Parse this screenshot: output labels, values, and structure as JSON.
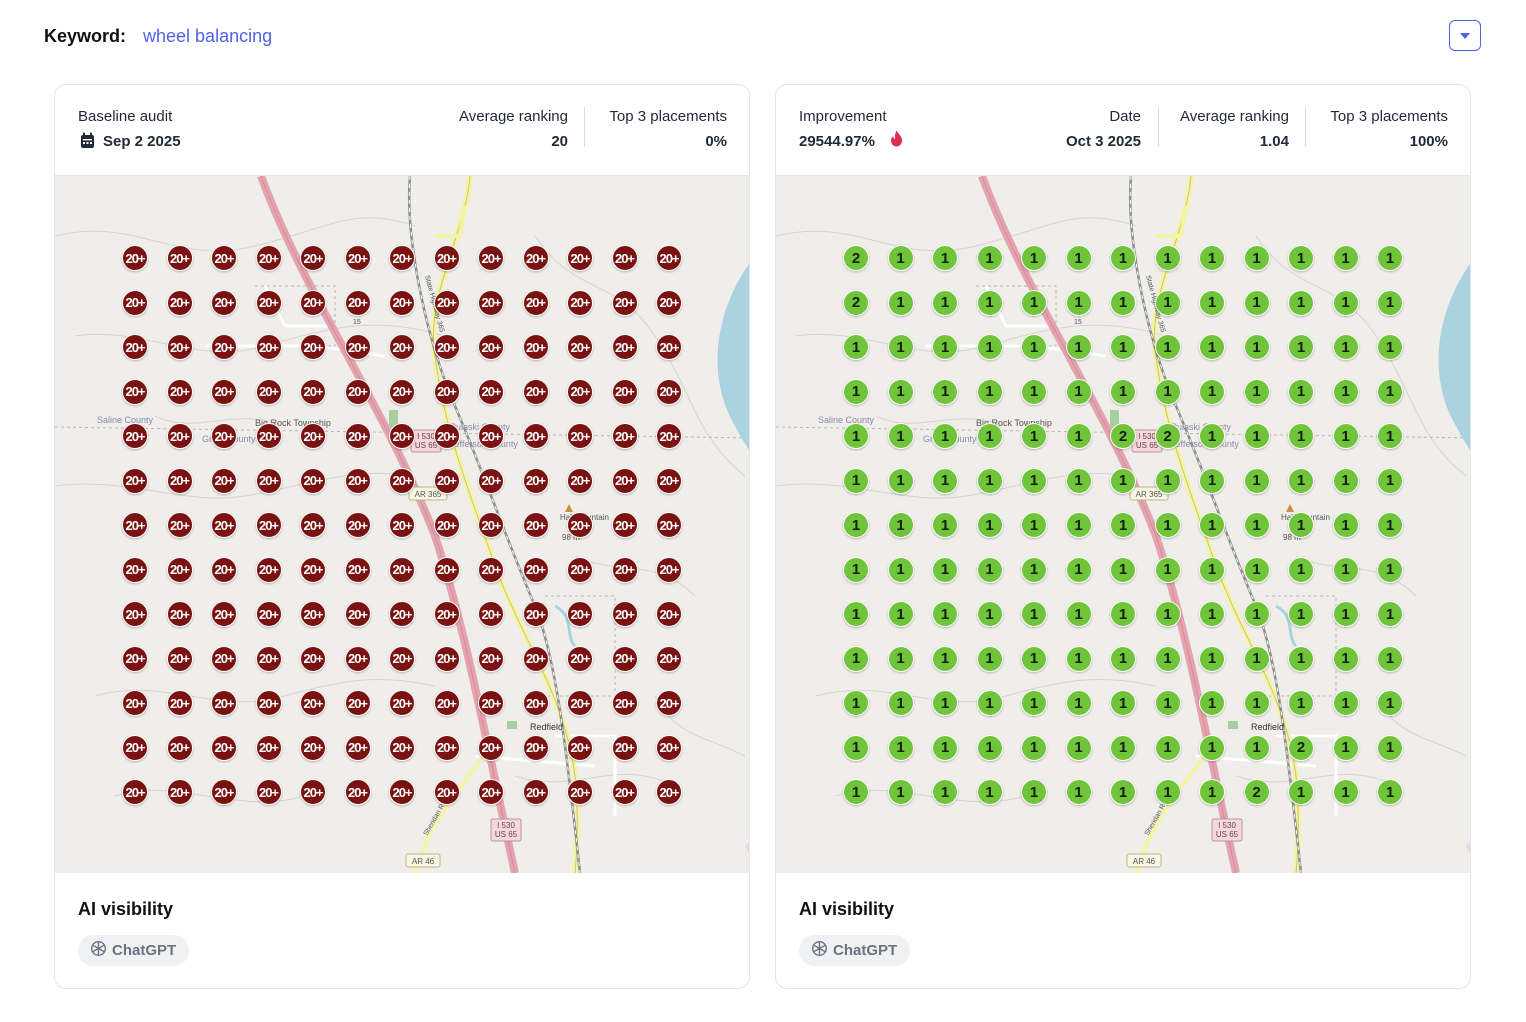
{
  "keyword": {
    "label": "Keyword:",
    "value": "wheel balancing"
  },
  "colors": {
    "accent": "#4f63e6",
    "pin_baseline": "#7a1212",
    "pin_current": "#6fc43a"
  },
  "left_card": {
    "baseline_label": "Baseline audit",
    "date": "Sep 2 2025",
    "avg_label": "Average ranking",
    "avg_value": "20",
    "top3_label": "Top 3 placements",
    "top3_value": "0%",
    "footer_title": "AI visibility",
    "chip_label": "ChatGPT",
    "grid": [
      [
        "20+",
        "20+",
        "20+",
        "20+",
        "20+",
        "20+",
        "20+",
        "20+",
        "20+",
        "20+",
        "20+",
        "20+",
        "20+"
      ],
      [
        "20+",
        "20+",
        "20+",
        "20+",
        "20+",
        "20+",
        "20+",
        "20+",
        "20+",
        "20+",
        "20+",
        "20+",
        "20+"
      ],
      [
        "20+",
        "20+",
        "20+",
        "20+",
        "20+",
        "20+",
        "20+",
        "20+",
        "20+",
        "20+",
        "20+",
        "20+",
        "20+"
      ],
      [
        "20+",
        "20+",
        "20+",
        "20+",
        "20+",
        "20+",
        "20+",
        "20+",
        "20+",
        "20+",
        "20+",
        "20+",
        "20+"
      ],
      [
        "20+",
        "20+",
        "20+",
        "20+",
        "20+",
        "20+",
        "20+",
        "20+",
        "20+",
        "20+",
        "20+",
        "20+",
        "20+"
      ],
      [
        "20+",
        "20+",
        "20+",
        "20+",
        "20+",
        "20+",
        "20+",
        "20+",
        "20+",
        "20+",
        "20+",
        "20+",
        "20+"
      ],
      [
        "20+",
        "20+",
        "20+",
        "20+",
        "20+",
        "20+",
        "20+",
        "20+",
        "20+",
        "20+",
        "20+",
        "20+",
        "20+"
      ],
      [
        "20+",
        "20+",
        "20+",
        "20+",
        "20+",
        "20+",
        "20+",
        "20+",
        "20+",
        "20+",
        "20+",
        "20+",
        "20+"
      ],
      [
        "20+",
        "20+",
        "20+",
        "20+",
        "20+",
        "20+",
        "20+",
        "20+",
        "20+",
        "20+",
        "20+",
        "20+",
        "20+"
      ],
      [
        "20+",
        "20+",
        "20+",
        "20+",
        "20+",
        "20+",
        "20+",
        "20+",
        "20+",
        "20+",
        "20+",
        "20+",
        "20+"
      ],
      [
        "20+",
        "20+",
        "20+",
        "20+",
        "20+",
        "20+",
        "20+",
        "20+",
        "20+",
        "20+",
        "20+",
        "20+",
        "20+"
      ],
      [
        "20+",
        "20+",
        "20+",
        "20+",
        "20+",
        "20+",
        "20+",
        "20+",
        "20+",
        "20+",
        "20+",
        "20+",
        "20+"
      ],
      [
        "20+",
        "20+",
        "20+",
        "20+",
        "20+",
        "20+",
        "20+",
        "20+",
        "20+",
        "20+",
        "20+",
        "20+",
        "20+"
      ]
    ]
  },
  "right_card": {
    "improvement_label": "Improvement",
    "improvement_value": "29544.97%",
    "date_label": "Date",
    "date_value": "Oct 3 2025",
    "avg_label": "Average ranking",
    "avg_value": "1.04",
    "top3_label": "Top 3 placements",
    "top3_value": "100%",
    "footer_title": "AI visibility",
    "chip_label": "ChatGPT",
    "grid": [
      [
        "2",
        "1",
        "1",
        "1",
        "1",
        "1",
        "1",
        "1",
        "1",
        "1",
        "1",
        "1",
        "1"
      ],
      [
        "2",
        "1",
        "1",
        "1",
        "1",
        "1",
        "1",
        "1",
        "1",
        "1",
        "1",
        "1",
        "1"
      ],
      [
        "1",
        "1",
        "1",
        "1",
        "1",
        "1",
        "1",
        "1",
        "1",
        "1",
        "1",
        "1",
        "1"
      ],
      [
        "1",
        "1",
        "1",
        "1",
        "1",
        "1",
        "1",
        "1",
        "1",
        "1",
        "1",
        "1",
        "1"
      ],
      [
        "1",
        "1",
        "1",
        "1",
        "1",
        "1",
        "2",
        "2",
        "1",
        "1",
        "1",
        "1",
        "1"
      ],
      [
        "1",
        "1",
        "1",
        "1",
        "1",
        "1",
        "1",
        "1",
        "1",
        "1",
        "1",
        "1",
        "1"
      ],
      [
        "1",
        "1",
        "1",
        "1",
        "1",
        "1",
        "1",
        "1",
        "1",
        "1",
        "1",
        "1",
        "1"
      ],
      [
        "1",
        "1",
        "1",
        "1",
        "1",
        "1",
        "1",
        "1",
        "1",
        "1",
        "1",
        "1",
        "1"
      ],
      [
        "1",
        "1",
        "1",
        "1",
        "1",
        "1",
        "1",
        "1",
        "1",
        "1",
        "1",
        "1",
        "1"
      ],
      [
        "1",
        "1",
        "1",
        "1",
        "1",
        "1",
        "1",
        "1",
        "1",
        "1",
        "1",
        "1",
        "1"
      ],
      [
        "1",
        "1",
        "1",
        "1",
        "1",
        "1",
        "1",
        "1",
        "1",
        "1",
        "1",
        "1",
        "1"
      ],
      [
        "1",
        "1",
        "1",
        "1",
        "1",
        "1",
        "1",
        "1",
        "1",
        "1",
        "2",
        "1",
        "1"
      ],
      [
        "1",
        "1",
        "1",
        "1",
        "1",
        "1",
        "1",
        "1",
        "1",
        "2",
        "1",
        "1",
        "1"
      ]
    ]
  },
  "map_labels": {
    "saline": "Saline County",
    "township": "Big Rock Township",
    "grant": "Grant County",
    "pulaski": "Pulaski County",
    "jefferson": "Jefferson County",
    "i530": "I 530",
    "us65": "US 65",
    "ar365": "AR 365",
    "ar46": "AR 46",
    "redfield": "Redfield",
    "sheridan": "Sheridan Road",
    "mountain": "Hall Mountain",
    "elev": "98 m",
    "highway": "State Highway 365",
    "i530_small": "15"
  }
}
